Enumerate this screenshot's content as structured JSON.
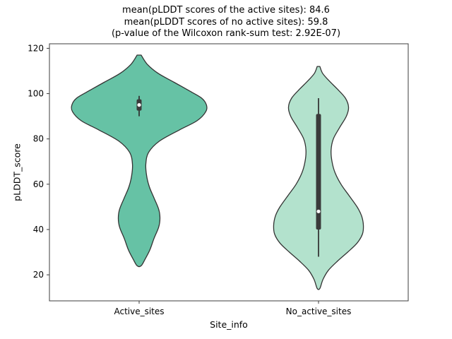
{
  "title": {
    "line1": "mean(pLDDT scores of the active sites): 84.6",
    "line2": "mean(pLDDT scores of no active sites): 59.8",
    "line3": "(p-value of the Wilcoxon rank-sum test: 2.92E-07)"
  },
  "chart_data": {
    "type": "violin",
    "title": "mean(pLDDT scores of the active sites): 84.6 / mean(pLDDT scores of no active sites): 59.8 / (p-value of the Wilcoxon rank-sum test: 2.92E-07)",
    "xlabel": "Site_info",
    "ylabel": "pLDDT_score",
    "categories": [
      "Active_sites",
      "No_active_sites"
    ],
    "ylim": [
      8.5,
      122
    ],
    "yticks": [
      20,
      40,
      60,
      80,
      100,
      120
    ],
    "grid": false,
    "legend": "none",
    "edge_color": "#333333",
    "means": {
      "Active_sites": 84.6,
      "No_active_sites": 59.8
    },
    "wilcoxon_p_value": "2.92E-07",
    "series": [
      {
        "name": "Active_sites",
        "color": "#66c2a5",
        "relative_width": 0.75,
        "value_range": [
          24,
          117
        ],
        "profile": [
          [
            24,
            0.03
          ],
          [
            27,
            0.09
          ],
          [
            31,
            0.16
          ],
          [
            36,
            0.22
          ],
          [
            41,
            0.29
          ],
          [
            45,
            0.31
          ],
          [
            49,
            0.29
          ],
          [
            54,
            0.22
          ],
          [
            59,
            0.15
          ],
          [
            64,
            0.11
          ],
          [
            69,
            0.1
          ],
          [
            74,
            0.14
          ],
          [
            79,
            0.3
          ],
          [
            84,
            0.6
          ],
          [
            88,
            0.86
          ],
          [
            92,
            0.99
          ],
          [
            95,
            1.0
          ],
          [
            98,
            0.93
          ],
          [
            101,
            0.76
          ],
          [
            105,
            0.52
          ],
          [
            109,
            0.28
          ],
          [
            113,
            0.12
          ],
          [
            117,
            0.03
          ]
        ],
        "box": {
          "whisker_low": 90,
          "q1": 92.5,
          "median": 95,
          "q3": 97.5,
          "whisker_high": 99
        }
      },
      {
        "name": "No_active_sites",
        "color": "#b3e2cd",
        "relative_width": 0.5,
        "value_range": [
          14,
          112
        ],
        "profile": [
          [
            14,
            0.03
          ],
          [
            18,
            0.1
          ],
          [
            22,
            0.22
          ],
          [
            26,
            0.42
          ],
          [
            30,
            0.65
          ],
          [
            34,
            0.86
          ],
          [
            38,
            0.98
          ],
          [
            42,
            1.0
          ],
          [
            46,
            0.96
          ],
          [
            50,
            0.86
          ],
          [
            55,
            0.68
          ],
          [
            60,
            0.5
          ],
          [
            65,
            0.37
          ],
          [
            70,
            0.3
          ],
          [
            75,
            0.28
          ],
          [
            80,
            0.33
          ],
          [
            85,
            0.47
          ],
          [
            90,
            0.62
          ],
          [
            94,
            0.67
          ],
          [
            98,
            0.6
          ],
          [
            102,
            0.42
          ],
          [
            106,
            0.22
          ],
          [
            109,
            0.09
          ],
          [
            112,
            0.03
          ]
        ],
        "box": {
          "whisker_low": 28,
          "q1": 40,
          "median": 48,
          "q3": 91,
          "whisker_high": 98
        }
      }
    ]
  }
}
